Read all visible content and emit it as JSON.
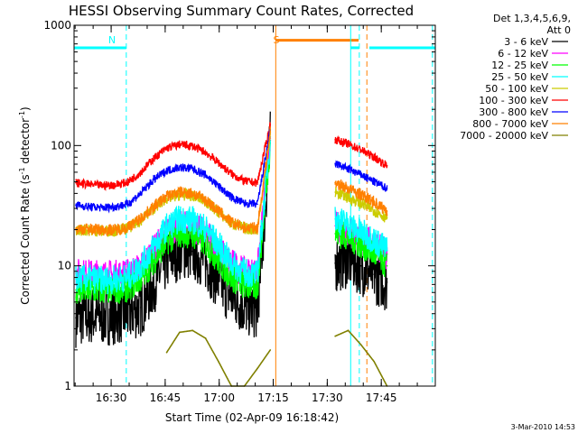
{
  "chart_data": {
    "type": "line",
    "title": "HESSI Observing Summary Count Rates, Corrected",
    "xlabel": "Start Time (02-Apr-09 16:18:42)",
    "ylabel": "Corrected Count Rate (s",
    "ylabel_sup1": "-1",
    "ylabel_mid": " detector",
    "ylabel_sup2": "-1",
    "ylabel_end": ")",
    "yscale": "log",
    "ylim": [
      1,
      1000
    ],
    "xlim_min": [
      1.0,
      101.3
    ],
    "y_ticks": [
      "1",
      "10",
      "100",
      "1000"
    ],
    "x_ticks": [
      {
        "label": "16:30",
        "min": 11.3
      },
      {
        "label": "16:45",
        "min": 26.3
      },
      {
        "label": "17:00",
        "min": 41.3
      },
      {
        "label": "17:15",
        "min": 56.3
      },
      {
        "label": "17:30",
        "min": 71.3
      },
      {
        "label": "17:45",
        "min": 86.3
      }
    ],
    "timestamp": "3-Mar-2010 14:53",
    "legend": {
      "header_lines": [
        "Det 1,3,4,5,6,9,",
        "Att 0"
      ],
      "placement": "right"
    },
    "series": [
      {
        "name": "3 - 6 keV",
        "color": "#000000",
        "values": [
          3.7,
          3.9,
          3.8,
          3.9,
          4.0,
          4.5,
          7.0,
          11.0,
          13.5,
          13.2,
          11.0,
          7.5,
          5.6,
          4.6,
          4.3,
          110,
          null,
          null,
          null,
          null,
          10.5,
          11.5,
          10.0,
          8.5,
          7.3
        ],
        "noise": 0.25
      },
      {
        "name": "6 - 12 keV",
        "color": "#ff00ff",
        "values": [
          8.6,
          8.5,
          8.4,
          8.4,
          8.6,
          9.6,
          13.5,
          18.5,
          21.5,
          21.0,
          18.5,
          13.5,
          10.5,
          8.8,
          8.8,
          115,
          null,
          null,
          null,
          null,
          21.5,
          19.5,
          17.0,
          15.0,
          12.5
        ],
        "noise": 0.13
      },
      {
        "name": "12 - 25 keV",
        "color": "#00ff00",
        "values": [
          6.3,
          6.2,
          6.2,
          6.3,
          6.5,
          7.8,
          11.0,
          16.0,
          18.5,
          18.2,
          15.5,
          11.0,
          8.0,
          6.8,
          6.6,
          105,
          null,
          null,
          null,
          null,
          18.5,
          17.5,
          15.0,
          12.5,
          10.0
        ],
        "noise": 0.12
      },
      {
        "name": "25 - 50 keV",
        "color": "#00ffff",
        "values": [
          7.8,
          7.8,
          7.6,
          7.7,
          8.0,
          10.0,
          14.5,
          21.0,
          24.5,
          24.0,
          20.5,
          15.0,
          10.5,
          8.8,
          8.4,
          118,
          null,
          null,
          null,
          null,
          24.5,
          22.0,
          19.0,
          16.5,
          13.5
        ],
        "noise": 0.12
      },
      {
        "name": "50 - 100 keV",
        "color": "#cccc00",
        "values": [
          20.0,
          19.8,
          19.5,
          19.7,
          20.5,
          24.0,
          30.0,
          36.5,
          39.0,
          38.5,
          34.5,
          28.0,
          22.5,
          20.5,
          20.0,
          125,
          null,
          null,
          null,
          null,
          41.0,
          37.0,
          33.0,
          29.0,
          25.0
        ],
        "noise": 0.05
      },
      {
        "name": "100 - 300 keV",
        "color": "#ff0000",
        "values": [
          49.0,
          47.5,
          46.5,
          47.0,
          49.5,
          60.0,
          78.0,
          95.0,
          102.0,
          99.0,
          88.0,
          72.0,
          58.0,
          50.5,
          49.0,
          150,
          null,
          null,
          null,
          null,
          112.0,
          103.0,
          92.0,
          80.0,
          68.0
        ],
        "noise": 0.035
      },
      {
        "name": "300 - 800 keV",
        "color": "#0000ff",
        "values": [
          32.0,
          31.0,
          30.5,
          31.0,
          32.5,
          40.0,
          52.0,
          62.0,
          66.0,
          64.0,
          57.0,
          46.0,
          37.0,
          33.0,
          32.5,
          135,
          null,
          null,
          null,
          null,
          71.0,
          64.0,
          57.0,
          50.0,
          44.0
        ],
        "noise": 0.035
      },
      {
        "name": "800 - 7000 keV",
        "color": "#ff8000",
        "values": [
          20.3,
          20.2,
          19.9,
          20.0,
          20.8,
          24.8,
          31.0,
          38.0,
          41.0,
          40.0,
          35.5,
          28.5,
          23.0,
          20.8,
          20.5,
          130,
          null,
          null,
          null,
          null,
          49.0,
          44.0,
          39.0,
          34.0,
          28.5
        ],
        "noise": 0.05
      },
      {
        "name": "7000 - 20000 keV",
        "color": "#808000",
        "values": [
          null,
          null,
          null,
          null,
          null,
          null,
          null,
          1.9,
          2.8,
          2.9,
          2.5,
          1.6,
          1.0,
          1.0,
          1.4,
          2.0,
          null,
          null,
          null,
          null,
          2.6,
          2.9,
          2.2,
          1.6,
          1.0
        ],
        "noise": 0
      }
    ],
    "x_step_min": 3.6,
    "x_start_min": 1.5,
    "annotations": [
      {
        "label": "N",
        "color": "#00ffff",
        "x_min": 10.5
      },
      {
        "label": "S",
        "color": "#ff8000",
        "x_min": 56.3
      }
    ],
    "intervals": [
      {
        "kind": "night",
        "color": "#00ffff",
        "from_min": 1.0,
        "to_min": 15.5,
        "y": 650
      },
      {
        "kind": "night",
        "color": "#00ffff",
        "from_min": 77.8,
        "to_min": 80.2,
        "y": 650
      },
      {
        "kind": "night",
        "color": "#00ffff",
        "from_min": 83.0,
        "to_min": 101.3,
        "y": 650
      },
      {
        "kind": "saa",
        "color": "#ff8000",
        "from_min": 57.0,
        "to_min": 80.0,
        "y": 750
      }
    ],
    "vlines": [
      {
        "color": "#00ffff",
        "min": 15.5,
        "dashed": true
      },
      {
        "color": "#00ffff",
        "min": 77.8,
        "dashed": false
      },
      {
        "color": "#00ffff",
        "min": 80.2,
        "dashed": true
      },
      {
        "color": "#00ffff",
        "min": 100.5,
        "dashed": true
      },
      {
        "color": "#ff8000",
        "min": 57.0,
        "dashed": false
      },
      {
        "color": "#ff8000",
        "min": 82.3,
        "dashed": true
      }
    ],
    "grid": false
  }
}
